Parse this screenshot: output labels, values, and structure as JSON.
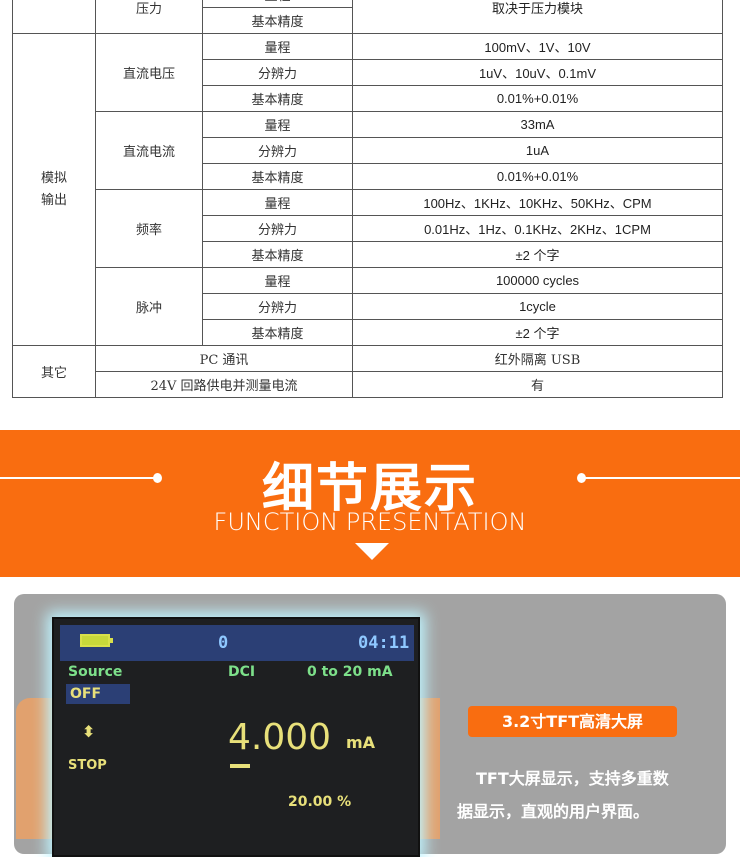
{
  "spec_table": {
    "pressure": {
      "label": "压力",
      "rows": [
        "量程",
        "基本精度"
      ],
      "value": "取决于压力模块"
    },
    "analog_output": {
      "label": "模拟输出",
      "groups": [
        {
          "label": "直流电压",
          "rows": [
            [
              "量程",
              "100mV、1V、10V"
            ],
            [
              "分辨力",
              "1uV、10uV、0.1mV"
            ],
            [
              "基本精度",
              "0.01%+0.01%"
            ]
          ]
        },
        {
          "label": "直流电流",
          "rows": [
            [
              "量程",
              "33mA"
            ],
            [
              "分辨力",
              "1uA"
            ],
            [
              "基本精度",
              "0.01%+0.01%"
            ]
          ]
        },
        {
          "label": "频率",
          "rows": [
            [
              "量程",
              "100Hz、1KHz、10KHz、50KHz、CPM"
            ],
            [
              "分辨力",
              "0.01Hz、1Hz、0.1KHz、2KHz、1CPM"
            ],
            [
              "基本精度",
              "±2 个字"
            ]
          ]
        },
        {
          "label": "脉冲",
          "rows": [
            [
              "量程",
              "100000 cycles"
            ],
            [
              "分辨力",
              "1cycle"
            ],
            [
              "基本精度",
              "±2 个字"
            ]
          ]
        }
      ]
    },
    "other": {
      "label": "其它",
      "rows": [
        [
          "PC 通讯",
          "红外隔离 USB"
        ],
        [
          "24V 回路供电并测量电流",
          "有"
        ]
      ]
    }
  },
  "banner": {
    "title": "细节展示",
    "subtitle": "FUNCTION PRESENTATION",
    "color": "#f96d10"
  },
  "screen": {
    "battery_icon": "battery-icon",
    "channel": "0",
    "time": "04:11",
    "mode": "Source",
    "state": "OFF",
    "signal": "DCI",
    "range": "0 to 20 mA",
    "updown_icon": "up-down-arrow-icon",
    "stop": "STOP",
    "value": "4.000",
    "unit": "mA",
    "percent": "20.00 %"
  },
  "feature": {
    "badge": "3.2寸TFT高清大屏",
    "desc_line1": "TFT大屏显示，支持多重数",
    "desc_line2": "据显示，直观的用户界面。"
  }
}
